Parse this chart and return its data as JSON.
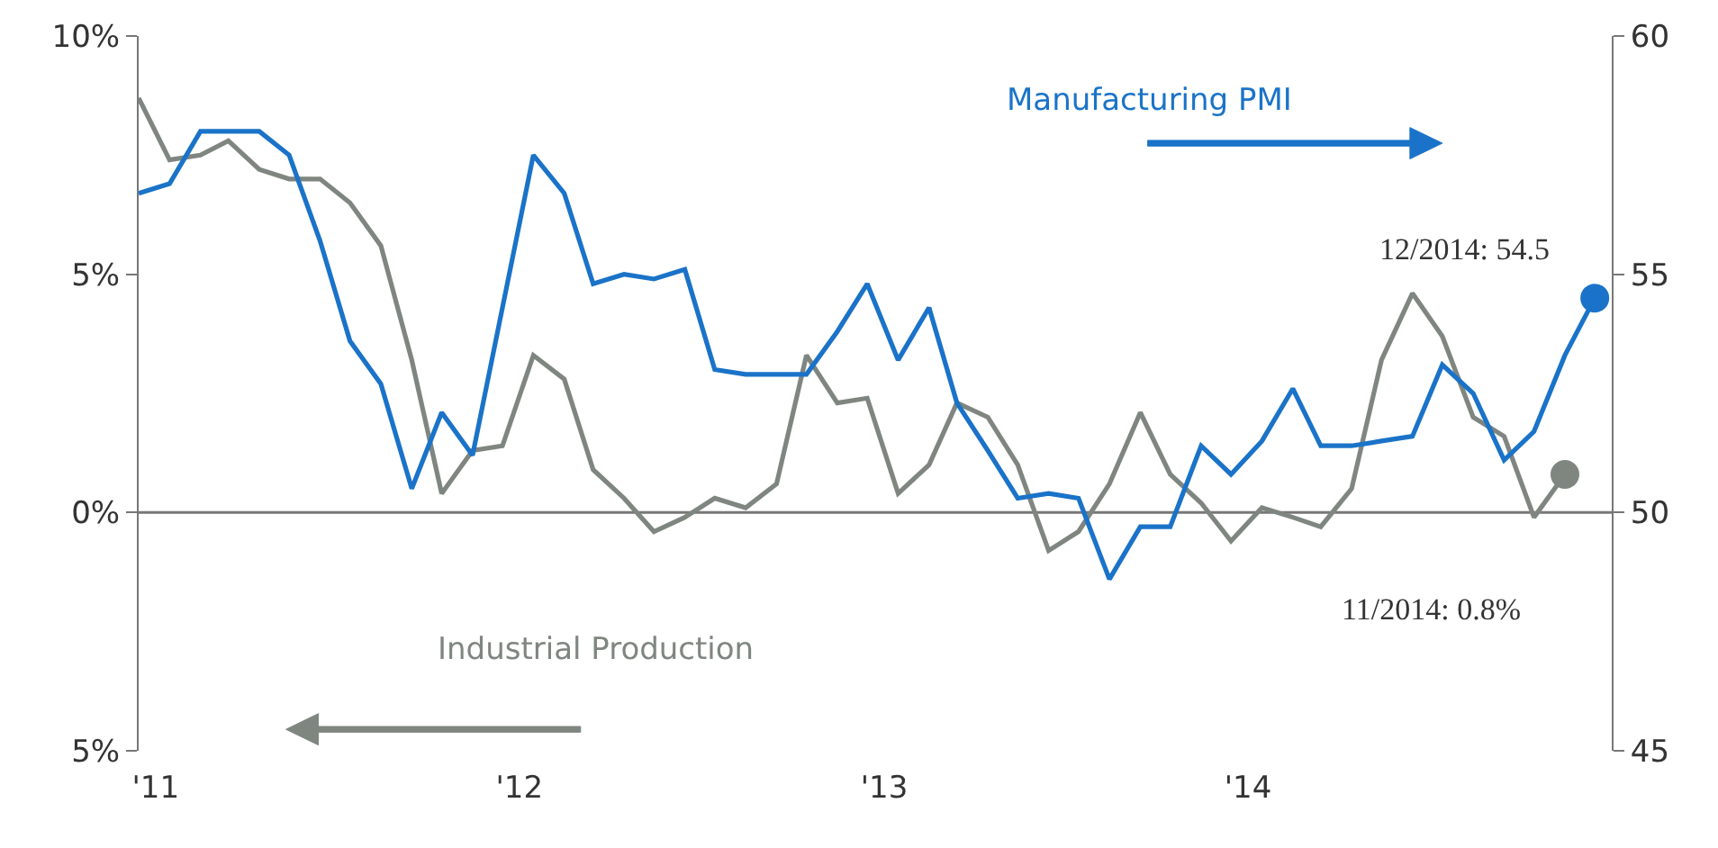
{
  "chart_data": {
    "type": "line",
    "x": [
      "2010-12-15",
      "2011-01-15",
      "2011-02-15",
      "2011-03-15",
      "2011-04-15",
      "2011-05-15",
      "2011-06-15",
      "2011-07-15",
      "2011-08-15",
      "2011-09-15",
      "2011-10-15",
      "2011-11-15",
      "2011-12-15",
      "2012-01-15",
      "2012-02-15",
      "2012-03-15",
      "2012-04-15",
      "2012-05-15",
      "2012-06-15",
      "2012-07-15",
      "2012-08-15",
      "2012-09-15",
      "2012-10-15",
      "2012-11-15",
      "2012-12-15",
      "2013-01-15",
      "2013-02-15",
      "2013-03-15",
      "2013-04-15",
      "2013-05-15",
      "2013-06-15",
      "2013-07-15",
      "2013-08-15",
      "2013-09-15",
      "2013-10-15",
      "2013-11-15",
      "2013-12-15",
      "2014-01-15",
      "2014-02-15",
      "2014-03-15",
      "2014-04-15",
      "2014-05-15",
      "2014-06-15",
      "2014-07-15",
      "2014-08-15",
      "2014-09-15",
      "2014-10-15",
      "2014-11-15",
      "2014-12-15"
    ],
    "series": [
      {
        "name": "Manufacturing PMI",
        "color": "#1a73c8",
        "axis": "y2",
        "values": [
          56.7,
          56.9,
          58.0,
          58.0,
          58.0,
          57.5,
          55.7,
          53.6,
          52.7,
          50.5,
          52.1,
          51.2,
          54.3,
          57.5,
          56.7,
          54.8,
          55.0,
          54.9,
          55.1,
          53.0,
          52.9,
          52.9,
          52.9,
          53.8,
          54.8,
          53.2,
          54.3,
          52.3,
          51.3,
          50.3,
          50.4,
          50.3,
          48.6,
          49.7,
          49.7,
          51.4,
          50.8,
          51.5,
          52.6,
          51.4,
          51.4,
          51.5,
          51.6,
          53.1,
          52.5,
          51.1,
          51.7,
          53.3,
          54.5
        ]
      },
      {
        "name": "Industrial Production",
        "color": "#7f8680",
        "values": [
          8.7,
          7.4,
          7.5,
          7.8,
          7.2,
          7.0,
          7.0,
          6.5,
          5.6,
          3.2,
          0.4,
          1.3,
          1.4,
          3.3,
          2.8,
          0.9,
          0.3,
          -0.4,
          -0.1,
          0.3,
          0.1,
          0.6,
          3.3,
          2.3,
          2.4,
          0.4,
          1.0,
          2.3,
          2.0,
          1.0,
          -0.8,
          -0.4,
          0.6,
          2.1,
          0.8,
          0.2,
          -0.6,
          0.1,
          -0.1,
          -0.3,
          0.5,
          3.2,
          4.6,
          3.7,
          2.0,
          1.6,
          -0.1,
          0.8,
          null
        ]
      }
    ],
    "annotations": [
      "12/2014: 54.5",
      "11/2014: 0.8%"
    ],
    "ref_lines": [
      {
        "axis": "y",
        "value": 0,
        "color": "#777777"
      }
    ],
    "marker": "none",
    "xlim": [
      "2010-12-15",
      "2015-01-01"
    ],
    "xticks": [
      {
        "value": "2011-01-01",
        "label": "'11"
      },
      {
        "value": "2012-01-01",
        "label": "'12"
      },
      {
        "value": "2013-01-01",
        "label": "'13"
      },
      {
        "value": "2014-01-01",
        "label": "'14"
      }
    ],
    "ylim": [
      -5,
      10
    ],
    "yticks": [
      {
        "value": 10,
        "label": "10%"
      },
      {
        "value": 5,
        "label": "5%"
      },
      {
        "value": 0,
        "label": "0%"
      },
      {
        "value": -5,
        "label": "5%"
      }
    ],
    "y2lim": [
      45,
      60
    ],
    "y2ticks": [
      60,
      55,
      50,
      45
    ],
    "legend": false,
    "grid": false,
    "line_style": "solid"
  }
}
